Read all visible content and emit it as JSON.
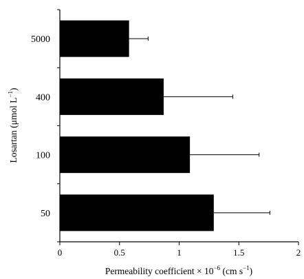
{
  "chart_data": {
    "type": "bar",
    "orientation": "horizontal",
    "categories": [
      "5000",
      "400",
      "100",
      "50"
    ],
    "series": [
      {
        "values": [
          0.58,
          0.87,
          1.09,
          1.29
        ],
        "error_plus": [
          0.16,
          0.58,
          0.58,
          0.47
        ]
      }
    ],
    "xlabel": {
      "prefix": "Permeability coefficient × 10",
      "exponent": "−6",
      "suffix": " (cm s",
      "suffix_exponent": "−1",
      "close": ")"
    },
    "ylabel": {
      "prefix": "Losartan (μmol L",
      "exponent": "−1",
      "close": ")"
    },
    "xlim": [
      0,
      2
    ],
    "xticks": [
      "0",
      "0.5",
      "1",
      "1.5",
      "2"
    ],
    "bar_color": "#000000",
    "grid": false,
    "legend": "none"
  }
}
